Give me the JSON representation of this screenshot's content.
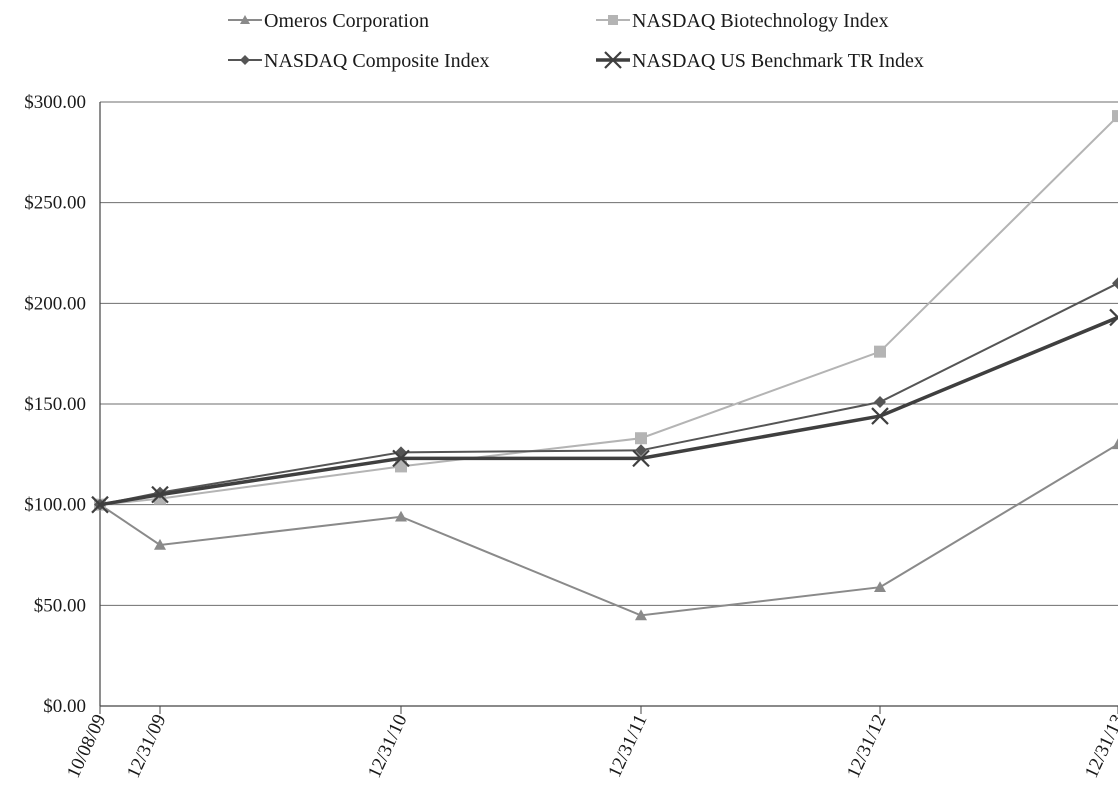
{
  "chart_data": {
    "type": "line",
    "title": "",
    "xlabel": "",
    "ylabel": "",
    "x": [
      "10/08/09",
      "12/31/09",
      "12/31/10",
      "12/31/11",
      "12/31/12",
      "12/31/13"
    ],
    "ylim": [
      0,
      300
    ],
    "yticks": [
      "$0.00",
      "$50.00",
      "$100.00",
      "$150.00",
      "$200.00",
      "$250.00",
      "$300.00"
    ],
    "grid": "horizontal",
    "legend_position": "top",
    "series": [
      {
        "name": "Omeros Corporation",
        "marker": "triangle",
        "color": "#8a8a8a",
        "values": [
          100,
          80,
          94,
          45,
          59,
          130
        ]
      },
      {
        "name": "NASDAQ Biotechnology Index",
        "marker": "square",
        "color": "#b4b4b4",
        "values": [
          100,
          103,
          119,
          133,
          176,
          293
        ]
      },
      {
        "name": "NASDAQ Composite Index",
        "marker": "diamond",
        "color": "#555555",
        "values": [
          100,
          106,
          126,
          127,
          151,
          210
        ]
      },
      {
        "name": "NASDAQ US Benchmark TR Index",
        "marker": "x",
        "color": "#3f3f3f",
        "values": [
          100,
          105,
          123,
          123,
          144,
          193
        ]
      }
    ]
  }
}
